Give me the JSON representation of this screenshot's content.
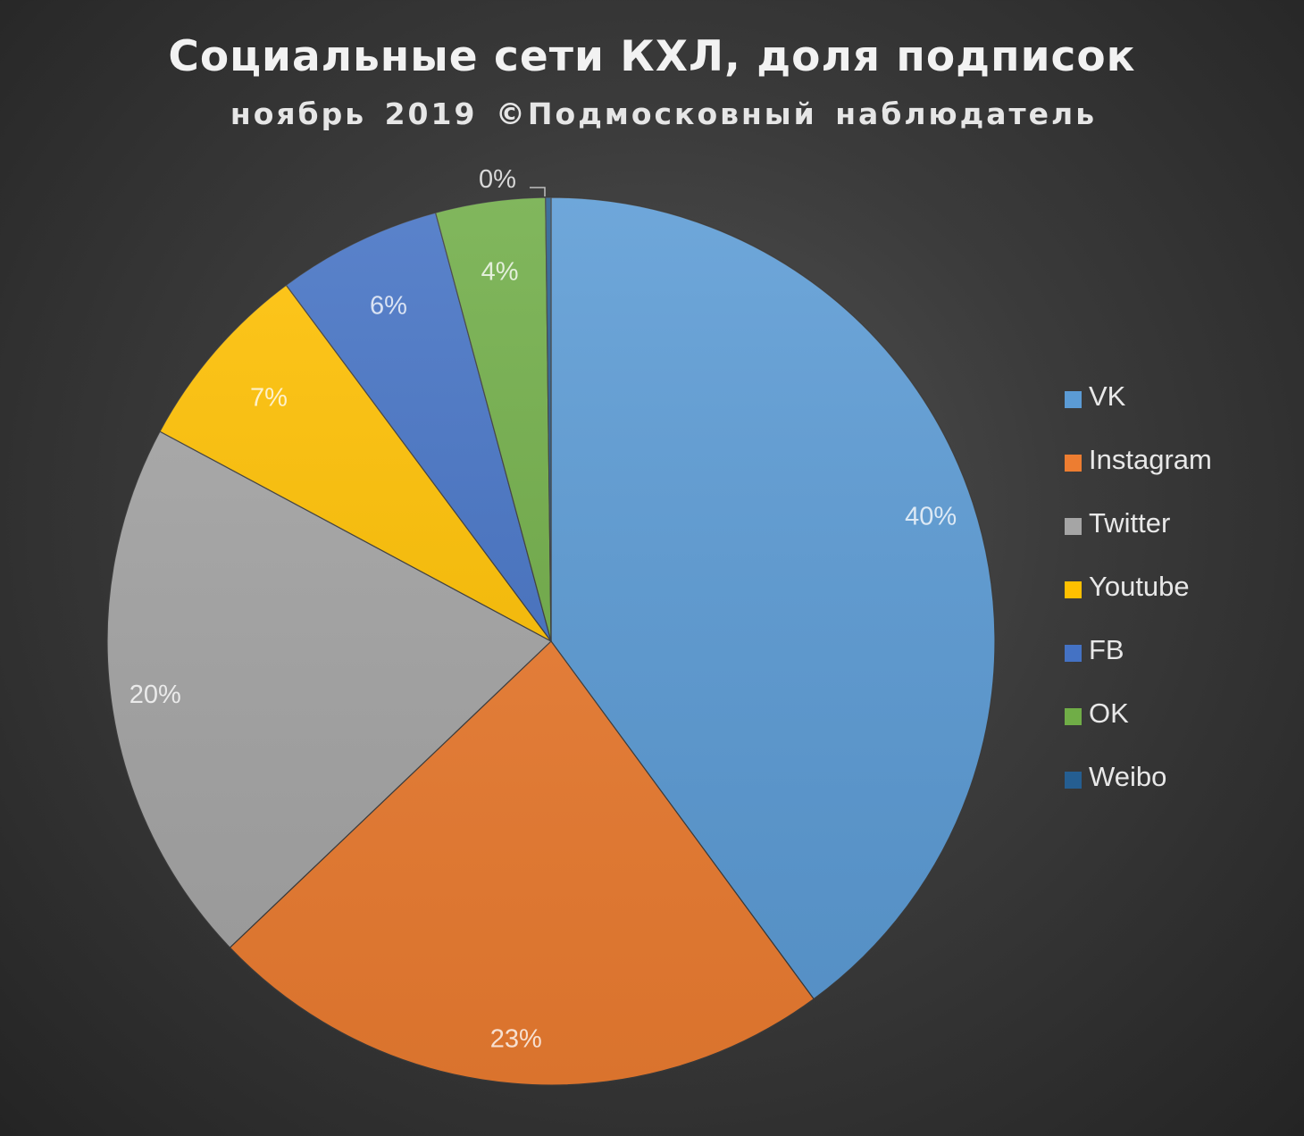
{
  "chart_data": {
    "type": "pie",
    "title": "Социальные сети КХЛ, доля подписок",
    "subtitle": "ноябрь 2019 ©Подмосковный наблюдатель",
    "legend_position": "right",
    "series": [
      {
        "name": "VK",
        "value": 40,
        "label": "40%",
        "color": "#5b9bd5"
      },
      {
        "name": "Instagram",
        "value": 23,
        "label": "23%",
        "color": "#ed7d31"
      },
      {
        "name": "Twitter",
        "value": 20,
        "label": "20%",
        "color": "#a5a5a5"
      },
      {
        "name": "Youtube",
        "value": 7,
        "label": "7%",
        "color": "#ffc000"
      },
      {
        "name": "FB",
        "value": 6,
        "label": "6%",
        "color": "#4472c4"
      },
      {
        "name": "OK",
        "value": 4,
        "label": "4%",
        "color": "#70ad47"
      },
      {
        "name": "Weibo",
        "value": 0.2,
        "label": "0%",
        "color": "#255e91"
      }
    ]
  }
}
